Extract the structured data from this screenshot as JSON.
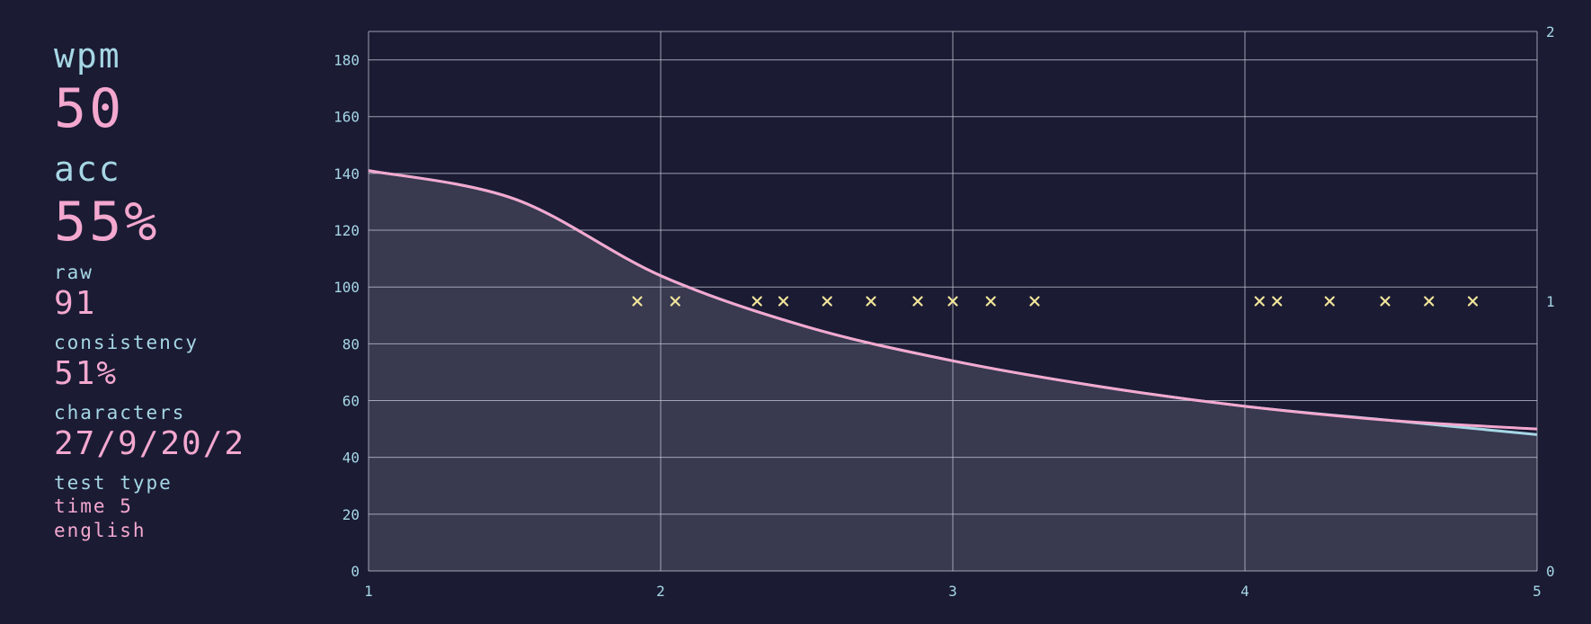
{
  "stats": {
    "wpm_label": "wpm",
    "wpm_value": "50",
    "acc_label": "acc",
    "acc_value": "55%",
    "raw_label": "raw",
    "raw_value": "91",
    "consistency_label": "consistency",
    "consistency_value": "51%",
    "characters_label": "characters",
    "characters_value": "27/9/20/2",
    "test_type_label": "test type",
    "test_type_mode": "time 5",
    "test_type_language": "english"
  },
  "colors": {
    "background": "#1b1b34",
    "label": "#a6d7e4",
    "value": "#f4a8cf",
    "grid": "#c8c8d8",
    "area_fill": "#393950",
    "raw_line": "#a6d7e4",
    "wpm_line": "#f4a8cf",
    "error_marker": "#f1e59a"
  },
  "chart_data": {
    "type": "line",
    "x": [
      1,
      1.5,
      2,
      2.5,
      3,
      3.5,
      4,
      4.5,
      5
    ],
    "xlim": [
      1,
      5
    ],
    "ylim": [
      0,
      190
    ],
    "y2lim": [
      0,
      2
    ],
    "xticks": [
      "1",
      "2",
      "3",
      "4",
      "5"
    ],
    "yticks": [
      "0",
      "20",
      "40",
      "60",
      "80",
      "100",
      "120",
      "140",
      "160",
      "180"
    ],
    "y2ticks": [
      "0",
      "1",
      "2"
    ],
    "grid": true,
    "series": [
      {
        "axis": "y",
        "values": [
          141,
          131,
          104,
          86,
          74,
          65,
          58,
          53,
          48
        ]
      },
      {
        "axis": "y",
        "values": [
          141,
          131,
          104,
          86,
          74,
          65,
          58,
          53,
          50
        ]
      },
      {
        "axis": "y2",
        "type": "scatter",
        "marker": "x",
        "x": [
          1.92,
          2.05,
          2.33,
          2.42,
          2.57,
          2.72,
          2.88,
          3.0,
          3.13,
          3.28,
          4.05,
          4.11,
          4.29,
          4.48,
          4.63,
          4.78
        ],
        "values": [
          1,
          1,
          1,
          1,
          1,
          1,
          1,
          1,
          1,
          1,
          1,
          1,
          1,
          1,
          1,
          1
        ]
      }
    ]
  }
}
